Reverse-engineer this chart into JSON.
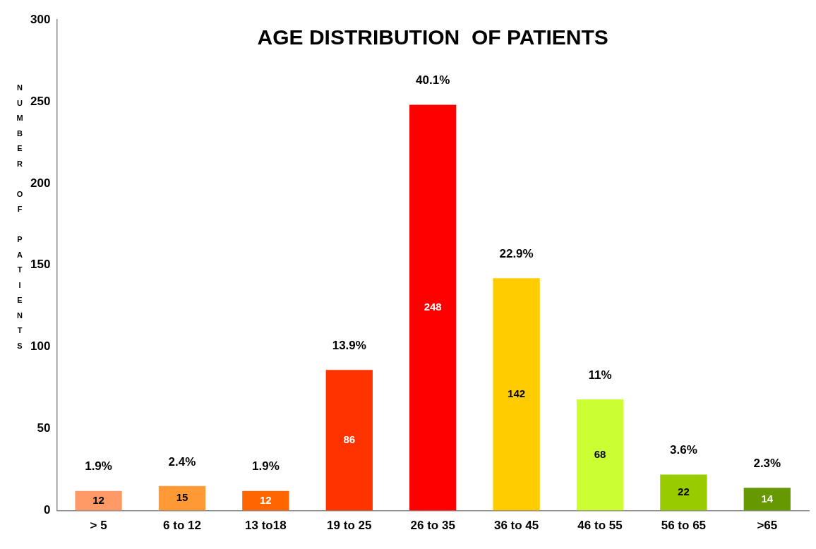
{
  "chart_data": {
    "type": "bar",
    "title": "AGE DISTRIBUTION  OF PATIENTS",
    "ylabel": "NUMBER OF PATIENTS",
    "categories": [
      "> 5",
      "6 to 12",
      "13 to18",
      "19 to 25",
      "26 to 35",
      "36 to 45",
      "46 to 55",
      "56 to 65",
      ">65"
    ],
    "values": [
      12,
      15,
      12,
      86,
      248,
      142,
      68,
      22,
      14
    ],
    "colors": [
      "#ff9966",
      "#ff9933",
      "#ff6600",
      "#ff3300",
      "#ff0000",
      "#ffcc00",
      "#ccff33",
      "#99cc00",
      "#669900"
    ],
    "ylim": [
      0,
      300
    ],
    "yticks": [
      0,
      50,
      100,
      150,
      200,
      250,
      300
    ],
    "grid": false,
    "legend": false,
    "data_labels": true,
    "annotations": [
      {
        "text": "1.9%",
        "x": "> 5",
        "y": 12
      },
      {
        "text": "2.4%",
        "x": "6 to 12",
        "y": 15
      },
      {
        "text": "1.9%",
        "x": "13 to18",
        "y": 12
      },
      {
        "text": "13.9%",
        "x": "19 to 25",
        "y": 86
      },
      {
        "text": "40.1%",
        "x": "26 to 35",
        "y": 248
      },
      {
        "text": "22.9%",
        "x": "36 to 45",
        "y": 142
      },
      {
        "text": "11%",
        "x": "46 to 55",
        "y": 68
      },
      {
        "text": "3.6%",
        "x": "56 to 65",
        "y": 22
      },
      {
        "text": "2.3%",
        "x": ">65",
        "y": 14
      }
    ]
  }
}
